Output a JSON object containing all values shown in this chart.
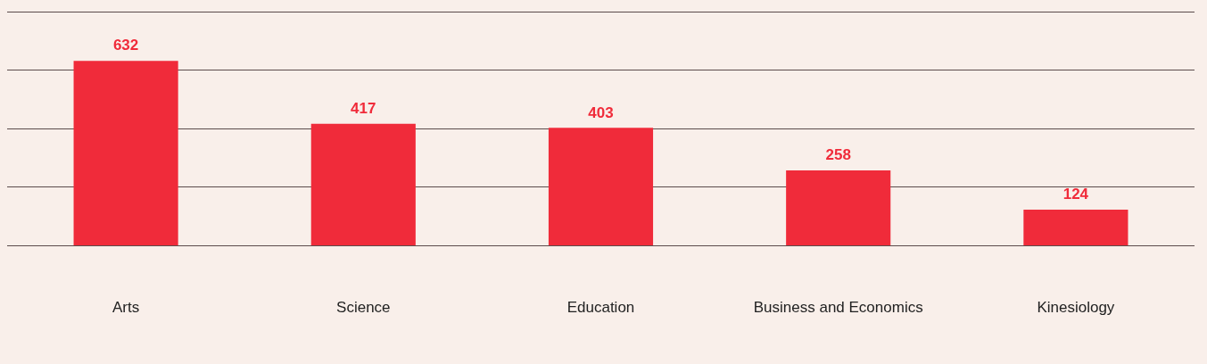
{
  "chart_data": {
    "type": "bar",
    "categories": [
      "Arts",
      "Science",
      "Education",
      "Business and Economics",
      "Kinesiology"
    ],
    "values": [
      632,
      417,
      403,
      258,
      124
    ],
    "color": "#f02b3a",
    "grid": "y",
    "tick_labels": "x",
    "data_labels": true,
    "legend": false
  }
}
